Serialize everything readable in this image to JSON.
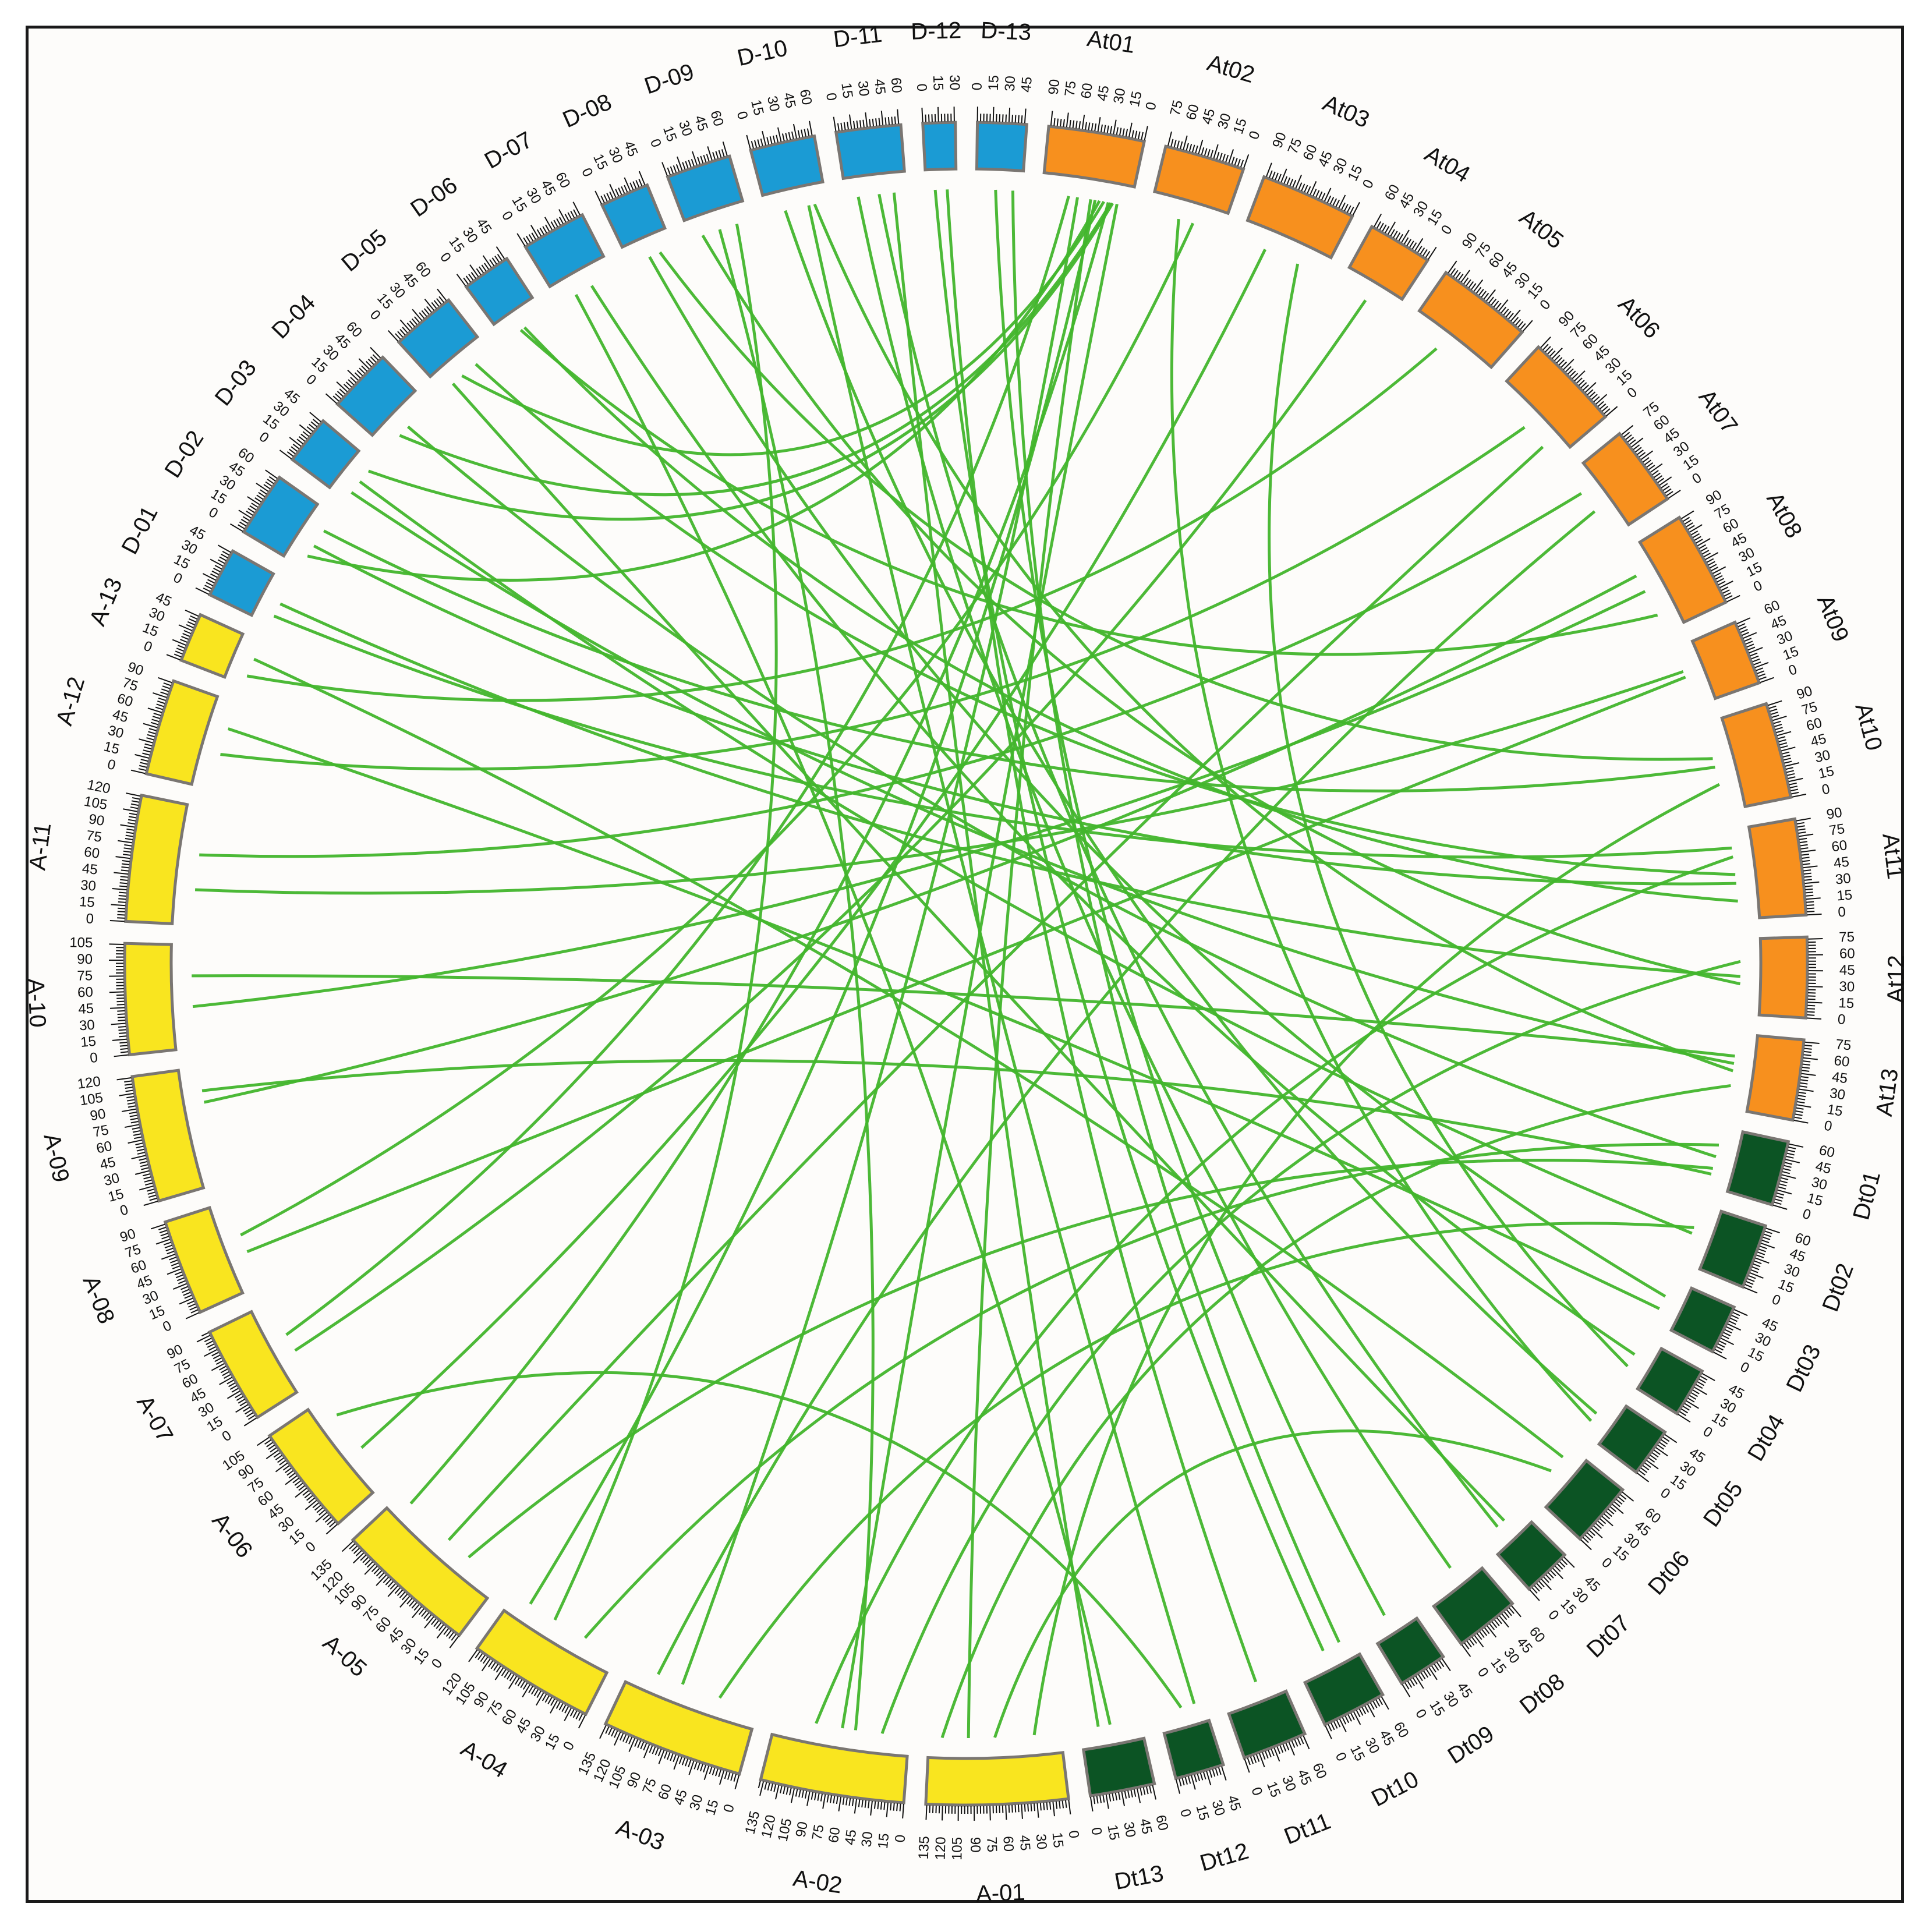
{
  "colors": {
    "A": "#f9e51f",
    "D": "#1b9bd4",
    "At": "#f7901e",
    "Dt": "#0c5424",
    "link": "#42b52c",
    "outline": "#7a7672"
  },
  "chromosomes": [
    {
      "name": "A-01",
      "group": "A",
      "length": 136,
      "ticks": [
        "0",
        "15",
        "30",
        "45",
        "60",
        "75",
        "90",
        "105",
        "120",
        "135"
      ]
    },
    {
      "name": "A-02",
      "group": "A",
      "length": 138,
      "ticks": [
        "0",
        "15",
        "30",
        "45",
        "60",
        "75",
        "90",
        "105",
        "120",
        "135"
      ]
    },
    {
      "name": "A-03",
      "group": "A",
      "length": 136,
      "ticks": [
        "0",
        "15",
        "30",
        "45",
        "60",
        "75",
        "90",
        "105",
        "120",
        "135"
      ]
    },
    {
      "name": "A-04",
      "group": "A",
      "length": 121,
      "ticks": [
        "0",
        "15",
        "30",
        "45",
        "60",
        "75",
        "90",
        "105",
        "120"
      ]
    },
    {
      "name": "A-05",
      "group": "A",
      "length": 136,
      "ticks": [
        "0",
        "15",
        "30",
        "45",
        "60",
        "75",
        "90",
        "105",
        "120",
        "135"
      ]
    },
    {
      "name": "A-06",
      "group": "A",
      "length": 106,
      "ticks": [
        "0",
        "15",
        "30",
        "45",
        "60",
        "75",
        "90",
        "105"
      ]
    },
    {
      "name": "A-07",
      "group": "A",
      "length": 93,
      "ticks": [
        "0",
        "15",
        "30",
        "45",
        "60",
        "75",
        "90"
      ]
    },
    {
      "name": "A-08",
      "group": "A",
      "length": 92,
      "ticks": [
        "0",
        "15",
        "30",
        "45",
        "60",
        "75",
        "90"
      ]
    },
    {
      "name": "A-09",
      "group": "A",
      "length": 121,
      "ticks": [
        "0",
        "15",
        "30",
        "45",
        "60",
        "75",
        "90",
        "105",
        "120"
      ]
    },
    {
      "name": "A-10",
      "group": "A",
      "length": 106,
      "ticks": [
        "0",
        "15",
        "30",
        "45",
        "60",
        "75",
        "90",
        "105"
      ]
    },
    {
      "name": "A-11",
      "group": "A",
      "length": 121,
      "ticks": [
        "0",
        "15",
        "30",
        "45",
        "60",
        "75",
        "90",
        "105",
        "120"
      ]
    },
    {
      "name": "A-12",
      "group": "A",
      "length": 92,
      "ticks": [
        "0",
        "15",
        "30",
        "45",
        "60",
        "75",
        "90"
      ]
    },
    {
      "name": "A-13",
      "group": "A",
      "length": 47,
      "ticks": [
        "0",
        "15",
        "30",
        "45"
      ]
    },
    {
      "name": "D-01",
      "group": "D",
      "length": 47,
      "ticks": [
        "0",
        "15",
        "30",
        "45"
      ]
    },
    {
      "name": "D-02",
      "group": "D",
      "length": 62,
      "ticks": [
        "0",
        "15",
        "30",
        "45",
        "60"
      ]
    },
    {
      "name": "D-03",
      "group": "D",
      "length": 47,
      "ticks": [
        "0",
        "15",
        "30",
        "45"
      ]
    },
    {
      "name": "D-04",
      "group": "D",
      "length": 62,
      "ticks": [
        "0",
        "15",
        "30",
        "45",
        "60"
      ]
    },
    {
      "name": "D-05",
      "group": "D",
      "length": 62,
      "ticks": [
        "0",
        "15",
        "30",
        "45",
        "60"
      ]
    },
    {
      "name": "D-06",
      "group": "D",
      "length": 47,
      "ticks": [
        "0",
        "15",
        "30",
        "45"
      ]
    },
    {
      "name": "D-07",
      "group": "D",
      "length": 62,
      "ticks": [
        "0",
        "15",
        "30",
        "45",
        "60"
      ]
    },
    {
      "name": "D-08",
      "group": "D",
      "length": 47,
      "ticks": [
        "0",
        "15",
        "30",
        "45"
      ]
    },
    {
      "name": "D-09",
      "group": "D",
      "length": 62,
      "ticks": [
        "0",
        "15",
        "30",
        "45",
        "60"
      ]
    },
    {
      "name": "D-10",
      "group": "D",
      "length": 62,
      "ticks": [
        "0",
        "15",
        "30",
        "45",
        "60"
      ]
    },
    {
      "name": "D-11",
      "group": "D",
      "length": 62,
      "ticks": [
        "0",
        "15",
        "30",
        "45",
        "60"
      ]
    },
    {
      "name": "D-12",
      "group": "D",
      "length": 31,
      "ticks": [
        "0",
        "15",
        "30"
      ]
    },
    {
      "name": "D-13",
      "group": "D",
      "length": 47,
      "ticks": [
        "0",
        "15",
        "30",
        "45"
      ]
    },
    {
      "name": "At01",
      "group": "At",
      "length": 92,
      "ticks": [
        "0",
        "15",
        "30",
        "45",
        "60",
        "75",
        "90"
      ]
    },
    {
      "name": "At02",
      "group": "At",
      "length": 77,
      "ticks": [
        "0",
        "15",
        "30",
        "45",
        "60",
        "75"
      ]
    },
    {
      "name": "At03",
      "group": "At",
      "length": 92,
      "ticks": [
        "0",
        "15",
        "30",
        "45",
        "60",
        "75",
        "90"
      ]
    },
    {
      "name": "At04",
      "group": "At",
      "length": 62,
      "ticks": [
        "0",
        "15",
        "30",
        "45",
        "60"
      ]
    },
    {
      "name": "At05",
      "group": "At",
      "length": 92,
      "ticks": [
        "0",
        "15",
        "30",
        "45",
        "60",
        "75",
        "90"
      ]
    },
    {
      "name": "At06",
      "group": "At",
      "length": 92,
      "ticks": [
        "0",
        "15",
        "30",
        "45",
        "60",
        "75",
        "90"
      ]
    },
    {
      "name": "At07",
      "group": "At",
      "length": 77,
      "ticks": [
        "0",
        "15",
        "30",
        "45",
        "60",
        "75"
      ]
    },
    {
      "name": "At08",
      "group": "At",
      "length": 92,
      "ticks": [
        "0",
        "15",
        "30",
        "45",
        "60",
        "75",
        "90"
      ]
    },
    {
      "name": "At09",
      "group": "At",
      "length": 62,
      "ticks": [
        "0",
        "15",
        "30",
        "45",
        "60"
      ]
    },
    {
      "name": "At10",
      "group": "At",
      "length": 92,
      "ticks": [
        "0",
        "15",
        "30",
        "45",
        "60",
        "75",
        "90"
      ]
    },
    {
      "name": "At11",
      "group": "At",
      "length": 92,
      "ticks": [
        "0",
        "15",
        "30",
        "45",
        "60",
        "75",
        "90"
      ]
    },
    {
      "name": "At12",
      "group": "At",
      "length": 77,
      "ticks": [
        "0",
        "15",
        "30",
        "45",
        "60",
        "75"
      ]
    },
    {
      "name": "At13",
      "group": "At",
      "length": 77,
      "ticks": [
        "0",
        "15",
        "30",
        "45",
        "60",
        "75"
      ]
    },
    {
      "name": "Dt01",
      "group": "Dt",
      "length": 62,
      "ticks": [
        "0",
        "15",
        "30",
        "45",
        "60"
      ]
    },
    {
      "name": "Dt02",
      "group": "Dt",
      "length": 62,
      "ticks": [
        "0",
        "15",
        "30",
        "45",
        "60"
      ]
    },
    {
      "name": "Dt03",
      "group": "Dt",
      "length": 47,
      "ticks": [
        "0",
        "15",
        "30",
        "45"
      ]
    },
    {
      "name": "Dt04",
      "group": "Dt",
      "length": 47,
      "ticks": [
        "0",
        "15",
        "30",
        "45"
      ]
    },
    {
      "name": "Dt05",
      "group": "Dt",
      "length": 47,
      "ticks": [
        "0",
        "15",
        "30",
        "45"
      ]
    },
    {
      "name": "Dt06",
      "group": "Dt",
      "length": 62,
      "ticks": [
        "0",
        "15",
        "30",
        "45",
        "60"
      ]
    },
    {
      "name": "Dt07",
      "group": "Dt",
      "length": 47,
      "ticks": [
        "0",
        "15",
        "30",
        "45"
      ]
    },
    {
      "name": "Dt08",
      "group": "Dt",
      "length": 62,
      "ticks": [
        "0",
        "15",
        "30",
        "45",
        "60"
      ]
    },
    {
      "name": "Dt09",
      "group": "Dt",
      "length": 47,
      "ticks": [
        "0",
        "15",
        "30",
        "45"
      ]
    },
    {
      "name": "Dt10",
      "group": "Dt",
      "length": 62,
      "ticks": [
        "0",
        "15",
        "30",
        "45",
        "60"
      ]
    },
    {
      "name": "Dt11",
      "group": "Dt",
      "length": 62,
      "ticks": [
        "0",
        "15",
        "30",
        "45",
        "60"
      ]
    },
    {
      "name": "Dt12",
      "group": "Dt",
      "length": 47,
      "ticks": [
        "0",
        "15",
        "30",
        "45"
      ]
    },
    {
      "name": "Dt13",
      "group": "Dt",
      "length": 62,
      "ticks": [
        "0",
        "15",
        "30",
        "45",
        "60"
      ]
    }
  ],
  "links": [
    [
      "D-13",
      0.42,
      "Dt09",
      0.55
    ],
    [
      "D-11",
      0.2,
      "Dt08",
      0.4
    ],
    [
      "D-11",
      0.55,
      "Dt07",
      0.6
    ],
    [
      "D-12",
      0.3,
      "Dt10",
      0.5
    ],
    [
      "D-12",
      0.7,
      "Dt11",
      0.4
    ],
    [
      "D-10",
      0.3,
      "Dt05",
      0.5
    ],
    [
      "D-08",
      0.45,
      "Dt03",
      0.4
    ],
    [
      "D-07",
      0.6,
      "Dt04",
      0.4
    ],
    [
      "D-09",
      0.5,
      "A-02",
      0.4
    ],
    [
      "D-04",
      0.5,
      "Dt01",
      0.5
    ],
    [
      "D-03",
      0.5,
      "Dt02",
      0.5
    ],
    [
      "D-02",
      0.4,
      "At11",
      0.6
    ],
    [
      "D-02",
      0.7,
      "At10",
      0.5
    ],
    [
      "D-01",
      0.5,
      "At12",
      0.5
    ],
    [
      "D-01",
      0.2,
      "At11",
      0.2
    ],
    [
      "D-03",
      0.2,
      "At13",
      0.4
    ],
    [
      "At01",
      0.8,
      "D-03",
      0.8
    ],
    [
      "At01",
      0.78,
      "D-04",
      0.3
    ],
    [
      "At01",
      0.7,
      "D-05",
      0.4
    ],
    [
      "At01",
      0.65,
      "D-02",
      0.2
    ],
    [
      "At01",
      0.75,
      "A-05",
      0.9
    ],
    [
      "At01",
      0.6,
      "A-04",
      0.85
    ],
    [
      "At01",
      0.85,
      "A-02",
      0.5
    ],
    [
      "At01",
      0.55,
      "A-01",
      0.7
    ],
    [
      "At01",
      0.4,
      "A-03",
      0.6
    ],
    [
      "At03",
      0.3,
      "A-06",
      0.4
    ],
    [
      "At04",
      0.5,
      "A-07",
      0.4
    ],
    [
      "At05",
      0.4,
      "A-13",
      0.2
    ],
    [
      "At06",
      0.5,
      "A-12",
      0.4
    ],
    [
      "At07",
      0.3,
      "A-11",
      0.6
    ],
    [
      "At08",
      0.5,
      "A-10",
      0.4
    ],
    [
      "At08",
      0.3,
      "A-09",
      0.7
    ],
    [
      "At09",
      0.5,
      "A-08",
      0.4
    ],
    [
      "At10",
      0.4,
      "D-08",
      0.7
    ],
    [
      "At10",
      0.7,
      "A-01",
      0.2
    ],
    [
      "At11",
      0.3,
      "A-02",
      0.7
    ],
    [
      "At11",
      0.8,
      "D-06",
      0.5
    ],
    [
      "At11",
      0.5,
      "D-05",
      0.7
    ],
    [
      "At12",
      0.6,
      "D-09",
      0.2
    ],
    [
      "At13",
      0.7,
      "A-01",
      0.9
    ],
    [
      "Dt01",
      0.3,
      "A-04",
      0.3
    ],
    [
      "Dt01",
      0.7,
      "A-05",
      0.3
    ],
    [
      "Dt02",
      0.4,
      "A-03",
      0.3
    ],
    [
      "Dt06",
      0.5,
      "A-01",
      0.5
    ],
    [
      "Dt12",
      0.5,
      "A-06",
      0.8
    ],
    [
      "Dt13",
      0.5,
      "D-07",
      0.3
    ],
    [
      "A-09",
      0.8,
      "Dt01",
      0.8
    ],
    [
      "A-10",
      0.7,
      "At13",
      0.3
    ],
    [
      "A-08",
      0.6,
      "At02",
      0.6
    ],
    [
      "A-07",
      0.6,
      "At01",
      0.3
    ],
    [
      "A-12",
      0.7,
      "Dt03",
      0.7
    ],
    [
      "A-13",
      0.6,
      "Dt06",
      0.2
    ],
    [
      "D-10",
      0.7,
      "Dt12",
      0.2
    ],
    [
      "D-11",
      0.8,
      "Dt13",
      0.7
    ],
    [
      "D-06",
      0.4,
      "At08",
      0.8
    ],
    [
      "A-11",
      0.3,
      "At09",
      0.4
    ],
    [
      "At02",
      0.4,
      "Dt05",
      0.7
    ],
    [
      "At03",
      0.7,
      "Dt04",
      0.7
    ],
    [
      "At06",
      0.8,
      "A-05",
      0.5
    ],
    [
      "At07",
      0.6,
      "A-03",
      0.8
    ],
    [
      "D-13",
      0.8,
      "Dt10",
      0.2
    ],
    [
      "D-09",
      0.8,
      "A-04",
      0.6
    ],
    [
      "At12",
      0.3,
      "A-02",
      0.2
    ],
    [
      "At13",
      0.5,
      "D-10",
      0.8
    ],
    [
      "Dt07",
      0.4,
      "D-05",
      0.2
    ]
  ]
}
